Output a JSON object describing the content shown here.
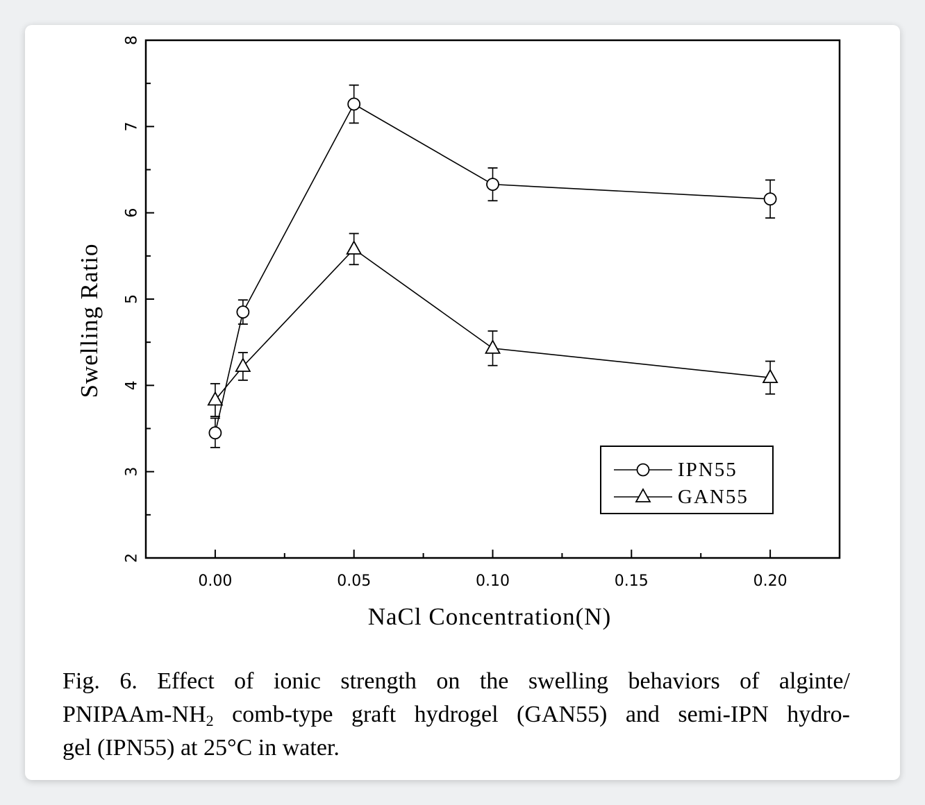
{
  "chart_data": {
    "type": "line",
    "xlabel": "NaCl Concentration(N)",
    "ylabel": "Swelling Ratio",
    "xlim": [
      -0.025,
      0.225
    ],
    "ylim": [
      2,
      8
    ],
    "x_tick_labels": [
      "0.00",
      "0.05",
      "0.10",
      "0.15",
      "0.20"
    ],
    "y_tick_labels": [
      "2",
      "3",
      "4",
      "5",
      "6",
      "7",
      "8"
    ],
    "legend_position": "lower-right",
    "series": [
      {
        "name": "IPN55",
        "marker": "circle",
        "x": [
          0.0,
          0.01,
          0.05,
          0.1,
          0.2
        ],
        "y": [
          3.45,
          4.85,
          7.26,
          6.33,
          6.16
        ],
        "error": [
          0.17,
          0.14,
          0.22,
          0.19,
          0.22
        ]
      },
      {
        "name": "GAN55",
        "marker": "triangle",
        "x": [
          0.0,
          0.01,
          0.05,
          0.1,
          0.2
        ],
        "y": [
          3.83,
          4.22,
          5.58,
          4.43,
          4.09
        ],
        "error": [
          0.19,
          0.16,
          0.18,
          0.2,
          0.19
        ]
      }
    ]
  },
  "caption": {
    "line1_words": [
      "Fig.",
      "6.",
      "Effect",
      "of",
      "ionic",
      "strength",
      "on",
      "the",
      "swelling",
      "behaviors",
      "of",
      "alginte/"
    ],
    "line2_pre": "PNIPAAm-NH",
    "line2_sub": "2",
    "line2_post_words": [
      "comb-type",
      "graft",
      "hydrogel",
      "(GAN55)",
      "and",
      "semi-IPN",
      "hydro-"
    ],
    "line3": "gel (IPN55) at 25°C in water."
  }
}
